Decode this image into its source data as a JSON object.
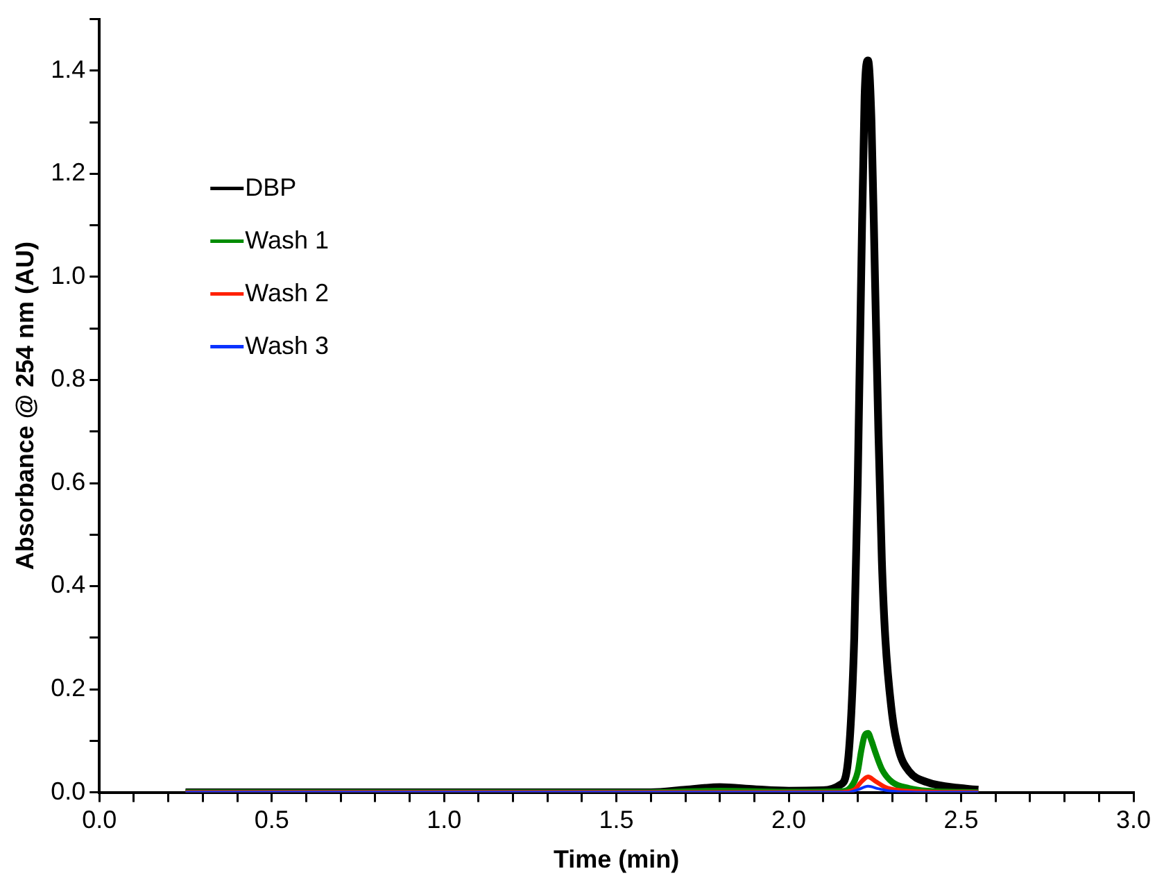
{
  "chart_data": {
    "type": "line",
    "xlabel": "Time (min)",
    "ylabel": "Absorbance @ 254 nm (AU)",
    "xlim": [
      0,
      3
    ],
    "ylim": [
      0,
      1.5
    ],
    "xticks": [
      {
        "value": 0,
        "label": "0.0"
      },
      {
        "value": 0.1,
        "label": null
      },
      {
        "value": 0.2,
        "label": null
      },
      {
        "value": 0.3,
        "label": null
      },
      {
        "value": 0.4,
        "label": null
      },
      {
        "value": 0.5,
        "label": "0.5"
      },
      {
        "value": 0.6,
        "label": null
      },
      {
        "value": 0.7,
        "label": null
      },
      {
        "value": 0.8,
        "label": null
      },
      {
        "value": 0.9,
        "label": null
      },
      {
        "value": 1,
        "label": "1.0"
      },
      {
        "value": 1.1,
        "label": null
      },
      {
        "value": 1.2,
        "label": null
      },
      {
        "value": 1.3,
        "label": null
      },
      {
        "value": 1.4,
        "label": null
      },
      {
        "value": 1.5,
        "label": "1.5"
      },
      {
        "value": 1.6,
        "label": null
      },
      {
        "value": 1.7,
        "label": null
      },
      {
        "value": 1.8,
        "label": null
      },
      {
        "value": 1.9,
        "label": null
      },
      {
        "value": 2,
        "label": "2.0"
      },
      {
        "value": 2.1,
        "label": null
      },
      {
        "value": 2.2,
        "label": null
      },
      {
        "value": 2.3,
        "label": null
      },
      {
        "value": 2.4,
        "label": null
      },
      {
        "value": 2.5,
        "label": "2.5"
      },
      {
        "value": 2.6,
        "label": null
      },
      {
        "value": 2.7,
        "label": null
      },
      {
        "value": 2.8,
        "label": null
      },
      {
        "value": 2.9,
        "label": null
      },
      {
        "value": 3,
        "label": "3.0"
      }
    ],
    "yticks": [
      {
        "value": 0,
        "label": "0.0"
      },
      {
        "value": 0.1,
        "label": null
      },
      {
        "value": 0.2,
        "label": "0.2"
      },
      {
        "value": 0.3,
        "label": null
      },
      {
        "value": 0.4,
        "label": "0.4"
      },
      {
        "value": 0.5,
        "label": null
      },
      {
        "value": 0.6,
        "label": "0.6"
      },
      {
        "value": 0.7,
        "label": null
      },
      {
        "value": 0.8,
        "label": "0.8"
      },
      {
        "value": 0.9,
        "label": null
      },
      {
        "value": 1,
        "label": "1.0"
      },
      {
        "value": 1.1,
        "label": null
      },
      {
        "value": 1.2,
        "label": "1.2"
      },
      {
        "value": 1.3,
        "label": null
      },
      {
        "value": 1.4,
        "label": "1.4"
      },
      {
        "value": 1.5,
        "label": null
      }
    ],
    "grid": false,
    "legend": "top left",
    "marker": "none",
    "line_style": "solid",
    "series": [
      {
        "name": "DBP",
        "color": "#000000",
        "x": [
          0.25,
          1.6,
          1.7,
          1.8,
          1.9,
          2.0,
          2.1,
          2.15,
          2.17,
          2.19,
          2.2,
          2.21,
          2.22,
          2.23,
          2.24,
          2.25,
          2.26,
          2.27,
          2.28,
          2.3,
          2.32,
          2.35,
          2.4,
          2.5,
          2.55
        ],
        "values": [
          0,
          0,
          0.005,
          0.01,
          0.006,
          0.003,
          0.004,
          0.015,
          0.05,
          0.3,
          0.6,
          1.0,
          1.35,
          1.42,
          1.3,
          1.0,
          0.7,
          0.45,
          0.3,
          0.15,
          0.08,
          0.04,
          0.02,
          0.008,
          0.005
        ]
      },
      {
        "name": "Wash 1",
        "color": "#008c00",
        "x": [
          0.25,
          1.6,
          1.8,
          2.0,
          2.15,
          2.18,
          2.2,
          2.21,
          2.22,
          2.23,
          2.24,
          2.25,
          2.27,
          2.3,
          2.35,
          2.4,
          2.55
        ],
        "values": [
          0,
          0,
          0.003,
          0.001,
          0.002,
          0.01,
          0.04,
          0.08,
          0.11,
          0.115,
          0.1,
          0.08,
          0.045,
          0.02,
          0.008,
          0.003,
          0
        ]
      },
      {
        "name": "Wash 2",
        "color": "#ff2000",
        "x": [
          0.25,
          2.15,
          2.19,
          2.21,
          2.23,
          2.25,
          2.28,
          2.32,
          2.4,
          2.55
        ],
        "values": [
          0,
          0,
          0.005,
          0.02,
          0.03,
          0.022,
          0.01,
          0.004,
          0.001,
          0
        ]
      },
      {
        "name": "Wash 3",
        "color": "#0a32ff",
        "x": [
          0.25,
          2.17,
          2.2,
          2.23,
          2.26,
          2.3,
          2.4,
          2.55
        ],
        "values": [
          0,
          0,
          0.005,
          0.012,
          0.007,
          0.002,
          0,
          0
        ]
      }
    ]
  }
}
